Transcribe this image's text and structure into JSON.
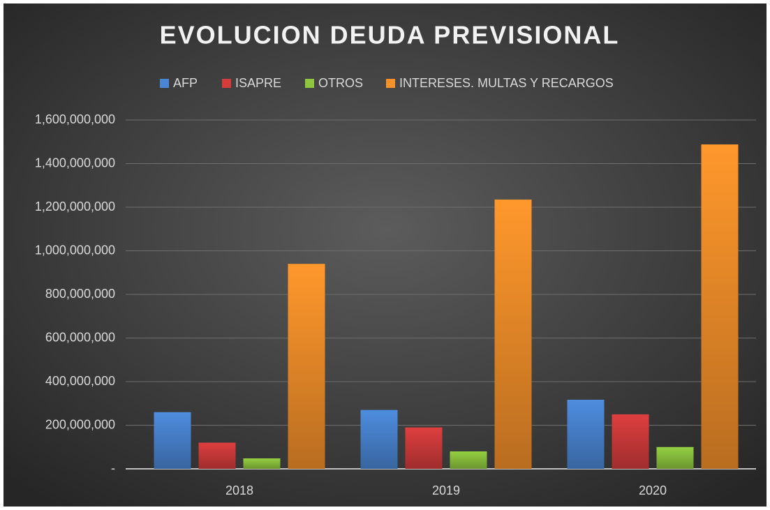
{
  "chart_data": {
    "type": "bar",
    "title": "EVOLUCION DEUDA PREVISIONAL",
    "categories": [
      "2018",
      "2019",
      "2020"
    ],
    "series": [
      {
        "name": "AFP",
        "color": "#4a86d4",
        "values": [
          260000000,
          270000000,
          317000000
        ]
      },
      {
        "name": "ISAPRE",
        "color": "#d43c3c",
        "values": [
          120000000,
          190000000,
          250000000
        ]
      },
      {
        "name": "OTROS",
        "color": "#8ec63f",
        "values": [
          48000000,
          80000000,
          100000000
        ]
      },
      {
        "name": "INTERESES. MULTAS Y RECARGOS",
        "color": "#f7912a",
        "values": [
          940000000,
          1235000000,
          1488000000
        ]
      }
    ],
    "ylim": [
      0,
      1600000000
    ],
    "yticks": [
      {
        "value": 0,
        "label": "-"
      },
      {
        "value": 200000000,
        "label": "200,000,000"
      },
      {
        "value": 400000000,
        "label": "400,000,000"
      },
      {
        "value": 600000000,
        "label": "600,000,000"
      },
      {
        "value": 800000000,
        "label": "800,000,000"
      },
      {
        "value": 1000000000,
        "label": "1,000,000,000"
      },
      {
        "value": 1200000000,
        "label": "1,200,000,000"
      },
      {
        "value": 1400000000,
        "label": "1,400,000,000"
      },
      {
        "value": 1600000000,
        "label": "1,600,000,000"
      }
    ],
    "grid": true,
    "legend": "top"
  }
}
